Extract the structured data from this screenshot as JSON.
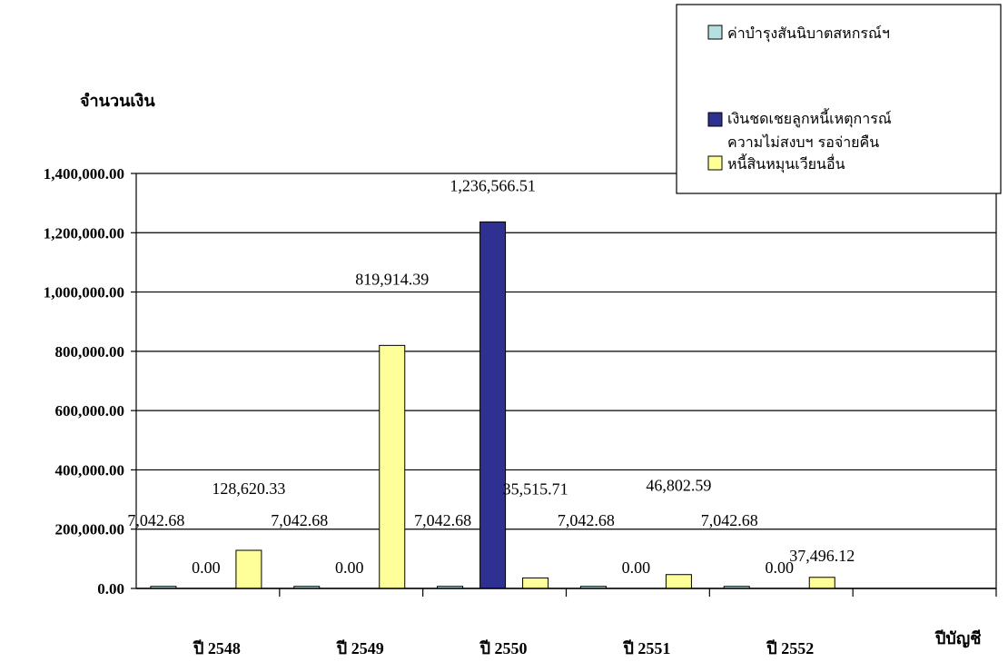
{
  "chart_data": {
    "type": "bar",
    "ylabel": "จำนวนเงิน",
    "xlabel": "ปีบัญชี",
    "ylim": [
      0,
      1400000
    ],
    "yticks": [
      "0.00",
      "200,000.00",
      "400,000.00",
      "600,000.00",
      "800,000.00",
      "1,000,000.00",
      "1,200,000.00",
      "1,400,000.00"
    ],
    "categories": [
      "ปี 2548",
      "ปี 2549",
      "ปี 2550",
      "ปี 2551",
      "ปี 2552"
    ],
    "grid": true,
    "legend_position": "top-right",
    "series": [
      {
        "name": "ค่าบำรุงสันนิบาตสหกรณ์ฯ",
        "color": "#b6e0e0",
        "values": [
          7042.68,
          7042.68,
          7042.68,
          7042.68,
          7042.68
        ],
        "labels": [
          "7,042.68",
          "7,042.68",
          "7,042.68",
          "7,042.68",
          "7,042.68"
        ]
      },
      {
        "name": "เงินชดเชยลูกหนี้เหตุการณ์ความไม่สงบฯ รอจ่ายคืน",
        "color": "#2e3192",
        "values": [
          0,
          0,
          1236566.51,
          0,
          0
        ],
        "labels": [
          "0.00",
          "0.00",
          "1,236,566.51",
          "0.00",
          "0.00"
        ]
      },
      {
        "name": "หนี้สินหมุนเวียนอื่น",
        "color": "#ffff99",
        "values": [
          128620.33,
          819914.39,
          35515.71,
          46802.59,
          37496.12
        ],
        "labels": [
          "128,620.33",
          "819,914.39",
          "35,515.71",
          "46,802.59",
          "37,496.12"
        ]
      }
    ]
  }
}
